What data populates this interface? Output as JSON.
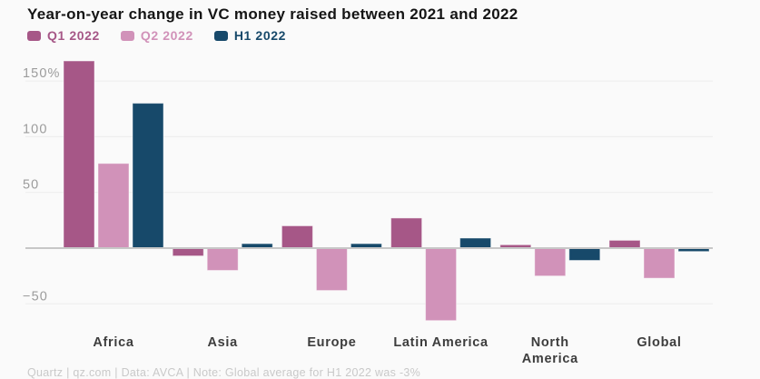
{
  "title": "Year-on-year change in VC money raised between 2021 and 2022",
  "legend": [
    {
      "label": "Q1 2022",
      "color": "#a65787"
    },
    {
      "label": "Q2 2022",
      "color": "#d192b9"
    },
    {
      "label": "H1 2022",
      "color": "#17496a"
    }
  ],
  "footer": "Quartz | qz.com | Data: AVCA | Note: Global average for H1 2022 was -3%",
  "colors": {
    "background": "#fafafa",
    "gridline": "#ededed",
    "zero_line": "#c7c7c7",
    "title_text": "#151515",
    "tick_text": "#9c9c9c",
    "category_text": "#3d3d3d",
    "footer_text": "#c9c9c9"
  },
  "chart_data": {
    "type": "bar",
    "title": "Year-on-year change in VC money raised between 2021 and 2022",
    "categories": [
      "Africa",
      "Asia",
      "Europe",
      "Latin America",
      "North America",
      "Global"
    ],
    "label_lines": [
      [
        "Africa"
      ],
      [
        "Asia"
      ],
      [
        "Europe"
      ],
      [
        "Latin America"
      ],
      [
        "North",
        "America"
      ],
      [
        "Global"
      ]
    ],
    "series": [
      {
        "name": "Q1 2022",
        "color": "#a65787",
        "values": [
          168,
          -7,
          20,
          27,
          3,
          7
        ]
      },
      {
        "name": "Q2 2022",
        "color": "#d192b9",
        "values": [
          76,
          -20,
          -38,
          -65,
          -25,
          -27
        ]
      },
      {
        "name": "H1 2022",
        "color": "#17496a",
        "values": [
          130,
          4,
          4,
          9,
          -11,
          -3
        ]
      }
    ],
    "unit": "percent",
    "xlabel": "",
    "ylabel": "",
    "ylim": [
      -75,
      175
    ],
    "yticks": [
      {
        "value": 150,
        "label": "150%"
      },
      {
        "value": 100,
        "label": "100"
      },
      {
        "value": 50,
        "label": "50"
      },
      {
        "value": 0,
        "label": ""
      },
      {
        "value": -50,
        "label": "−50"
      }
    ],
    "grid": true,
    "legend_position": "top-left"
  }
}
